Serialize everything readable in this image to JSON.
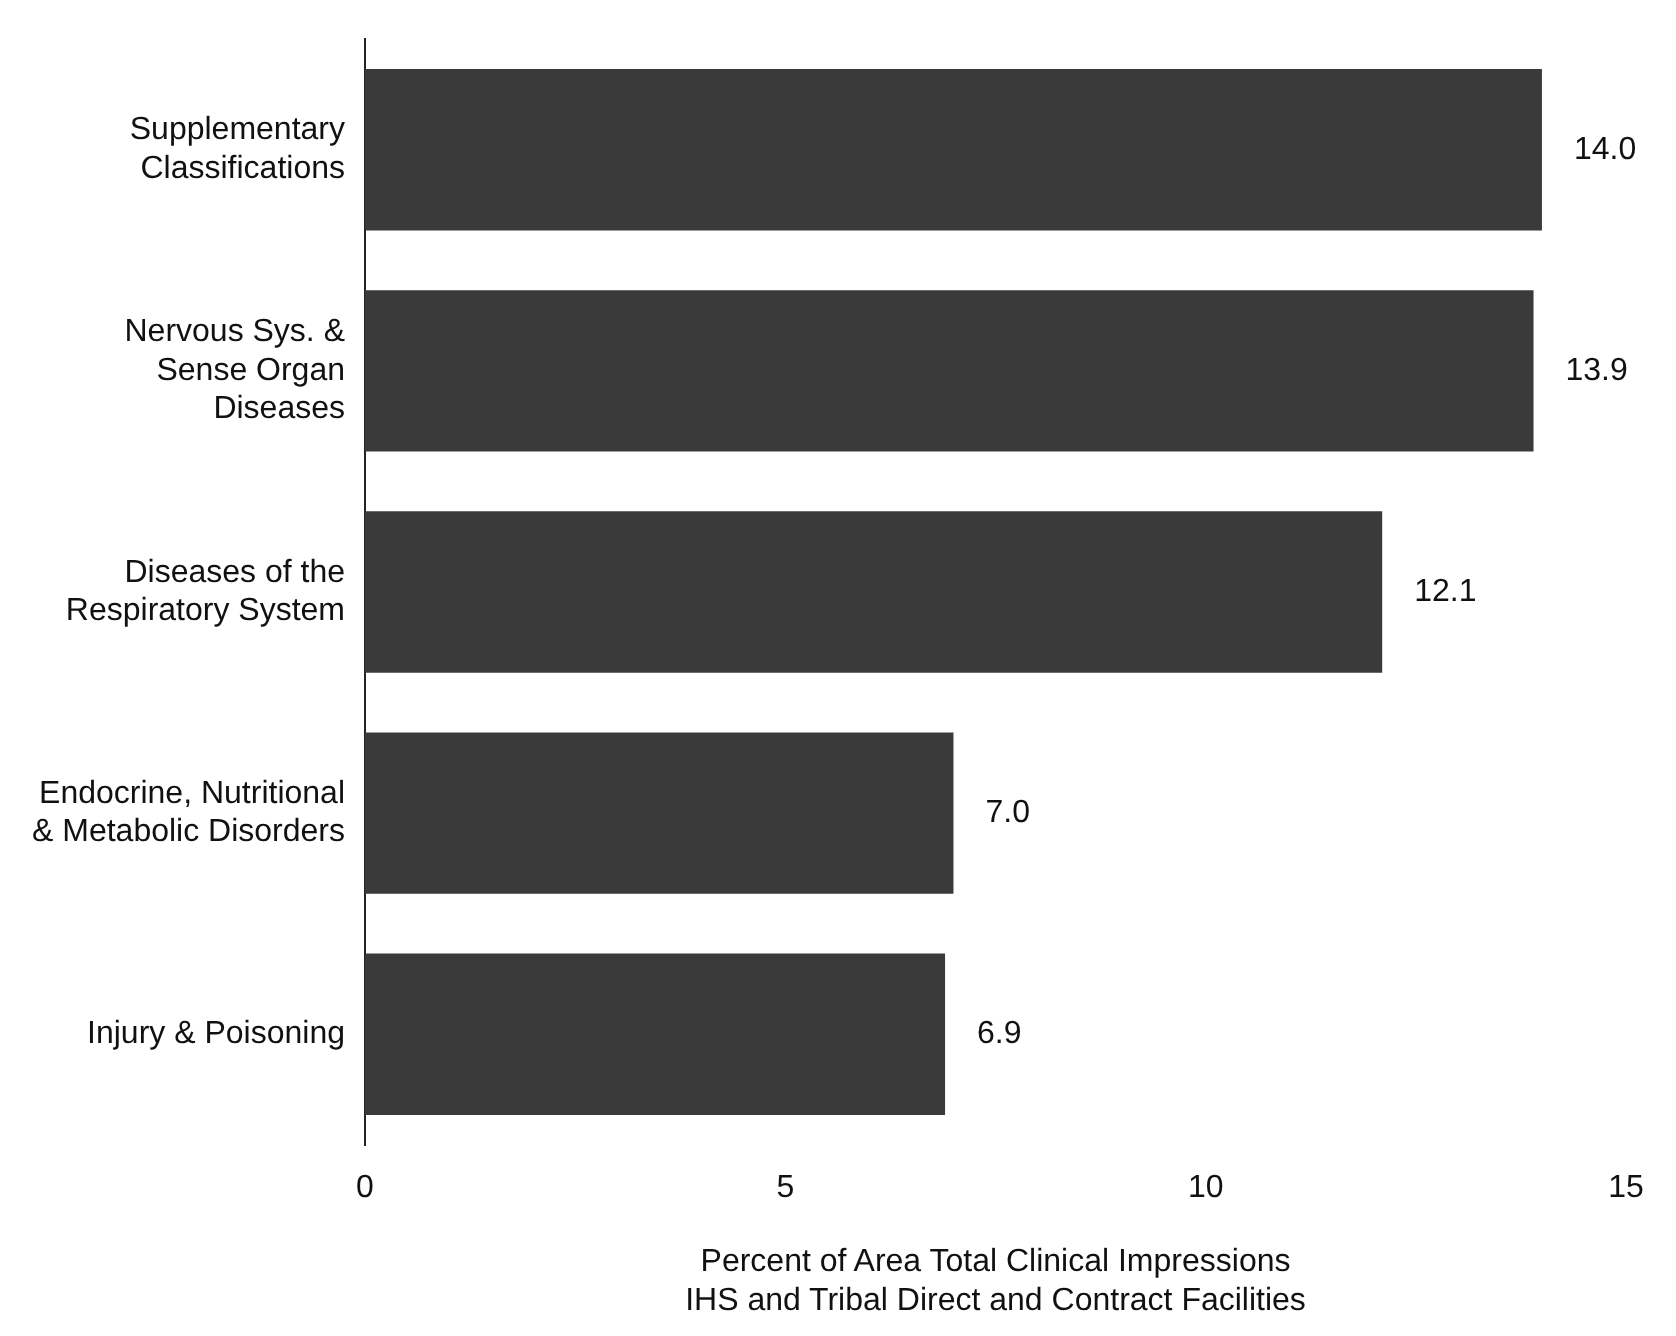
{
  "chart_data": {
    "type": "bar",
    "orientation": "horizontal",
    "categories": [
      "Supplementary\nClassifications",
      "Nervous Sys. &\nSense Organ\nDiseases",
      "Diseases of the\nRespiratory System",
      "Endocrine, Nutritional\n& Metabolic Disorders",
      "Injury & Poisoning"
    ],
    "values": [
      14.0,
      13.9,
      12.1,
      7.0,
      6.9
    ],
    "value_labels": [
      "14.0",
      "13.9",
      "12.1",
      "7.0",
      "6.9"
    ],
    "color": "#3a3a3a",
    "xlim": [
      0,
      15
    ],
    "xticks": [
      0,
      5,
      10,
      15
    ],
    "xlabel": "Percent of Area Total Clinical Impressions\nIHS and Tribal Direct and Contract Facilities",
    "grid": false,
    "legend": false
  }
}
